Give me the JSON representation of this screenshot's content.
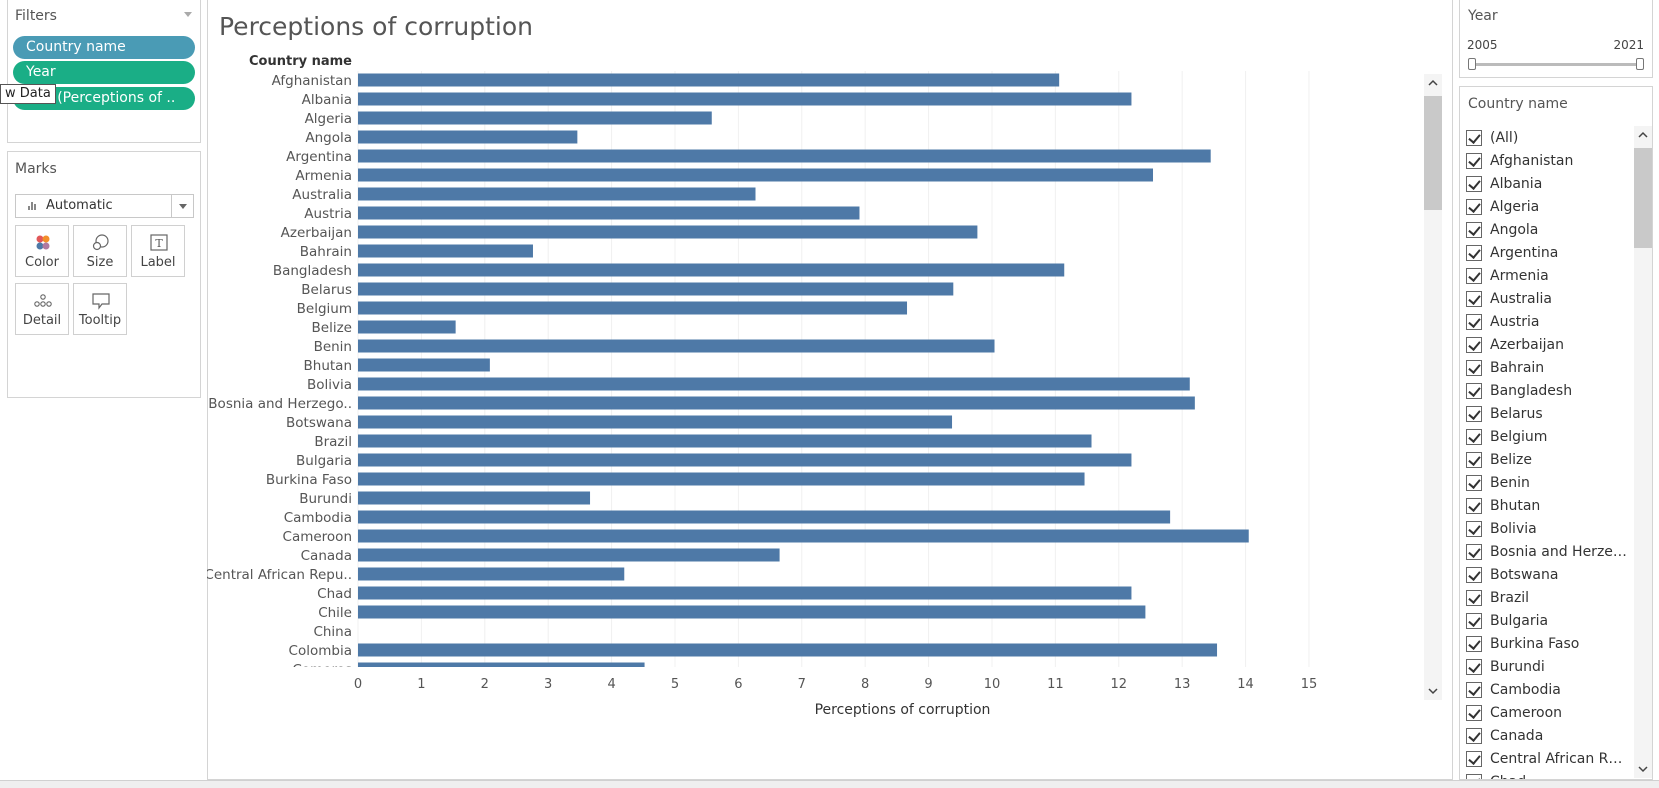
{
  "filters": {
    "title": "Filters",
    "pills": [
      {
        "label": "Country name",
        "color": "#4a9bb5"
      },
      {
        "label": "Year",
        "color": "#1aae86"
      },
      {
        "label": "SUM(Perceptions of ..",
        "color": "#1aae86"
      }
    ],
    "tooltip_fragment": "w Data"
  },
  "marks": {
    "title": "Marks",
    "mark_type": "Automatic",
    "buttons": [
      "Color",
      "Size",
      "Label",
      "Detail",
      "Tooltip"
    ]
  },
  "year_filter": {
    "title": "Year",
    "min": "2005",
    "max": "2021"
  },
  "country_filter": {
    "title": "Country name",
    "items": [
      "(All)",
      "Afghanistan",
      "Albania",
      "Algeria",
      "Angola",
      "Argentina",
      "Armenia",
      "Australia",
      "Austria",
      "Azerbaijan",
      "Bahrain",
      "Bangladesh",
      "Belarus",
      "Belgium",
      "Belize",
      "Benin",
      "Bhutan",
      "Bolivia",
      "Bosnia and Herze…",
      "Botswana",
      "Brazil",
      "Bulgaria",
      "Burkina Faso",
      "Burundi",
      "Cambodia",
      "Cameroon",
      "Canada",
      "Central African R…",
      "Chad"
    ]
  },
  "colors": {
    "bar": "#4e79a7",
    "pill_blue": "#4a9bb5",
    "pill_green": "#1aae86"
  },
  "chart_data": {
    "type": "bar",
    "orientation": "horizontal",
    "title": "Perceptions of corruption",
    "row_header": "Country name",
    "xlabel": "Perceptions of corruption",
    "xlim": [
      0,
      15.6
    ],
    "xticks": [
      0,
      1,
      2,
      3,
      4,
      5,
      6,
      7,
      8,
      9,
      10,
      11,
      12,
      13,
      14,
      15
    ],
    "grid": true,
    "categories": [
      "Afghanistan",
      "Albania",
      "Algeria",
      "Angola",
      "Argentina",
      "Armenia",
      "Australia",
      "Austria",
      "Azerbaijan",
      "Bahrain",
      "Bangladesh",
      "Belarus",
      "Belgium",
      "Belize",
      "Benin",
      "Bhutan",
      "Bolivia",
      "Bosnia and Herzego..",
      "Botswana",
      "Brazil",
      "Bulgaria",
      "Burkina Faso",
      "Burundi",
      "Cambodia",
      "Cameroon",
      "Canada",
      "Central African Repu..",
      "Chad",
      "Chile",
      "China",
      "Colombia",
      "Comoros"
    ],
    "values": [
      11.06,
      12.2,
      5.58,
      3.46,
      13.45,
      12.54,
      6.27,
      7.91,
      9.77,
      2.76,
      11.14,
      9.39,
      8.66,
      1.54,
      10.04,
      2.08,
      13.12,
      13.2,
      9.37,
      11.57,
      12.2,
      11.46,
      3.66,
      12.81,
      14.05,
      6.65,
      4.2,
      12.2,
      12.42,
      null,
      13.55,
      4.52
    ]
  }
}
